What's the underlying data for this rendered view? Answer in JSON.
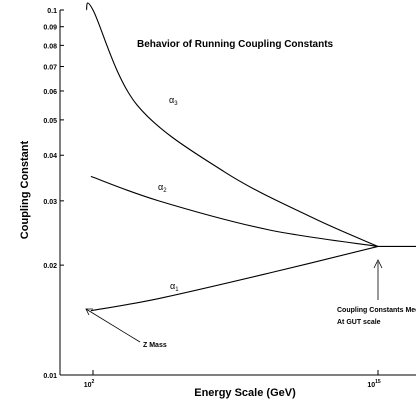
{
  "chart_data": {
    "type": "line",
    "title": "Behavior of Running Coupling Constants",
    "xlabel": "Energy Scale (GeV)",
    "ylabel": "Coupling Constant",
    "xscale": "log",
    "yscale": "log",
    "ylim": [
      0.01,
      0.1
    ],
    "y_tick_labels": [
      "0.1",
      "0.09",
      "0.08",
      "0.07",
      "0.06",
      "0.05",
      "0.04",
      "0.03",
      "0.02",
      "0.01"
    ],
    "x_tick_labels": [
      {
        "base": "10",
        "exp": "2"
      },
      {
        "base": "10",
        "exp": "15"
      }
    ],
    "series": [
      {
        "name": "α3",
        "sym": "α",
        "sub": "3",
        "points": [
          [
            50,
            0.1
          ],
          [
            100,
            0.1
          ],
          [
            10000.0,
            0.055
          ],
          [
            100000000.0,
            0.036
          ],
          [
            1000000000000.0,
            0.027
          ],
          [
            1000000000000000.0,
            0.0225
          ]
        ]
      },
      {
        "name": "α2",
        "sym": "α",
        "sub": "2",
        "points": [
          [
            80,
            0.035
          ],
          [
            100000.0,
            0.03
          ],
          [
            10000000000.0,
            0.025
          ],
          [
            1000000000000000.0,
            0.0225
          ]
        ]
      },
      {
        "name": "α1",
        "sym": "α",
        "sub": "1",
        "points": [
          [
            80,
            0.015
          ],
          [
            100000.0,
            0.0162
          ],
          [
            10000000000.0,
            0.019
          ],
          [
            1000000000000000.0,
            0.0225
          ]
        ]
      },
      {
        "name": "",
        "sym": "",
        "sub": "",
        "points": [
          [
            1000000000000000.0,
            0.0225
          ],
          [
            1e+17,
            0.0225
          ]
        ]
      }
    ],
    "annotations": [
      {
        "id": "meet",
        "lines": [
          "Coupling Constants Meet",
          "At GUT scale"
        ]
      },
      {
        "id": "zmass",
        "lines": [
          "Z Mass"
        ]
      }
    ]
  }
}
